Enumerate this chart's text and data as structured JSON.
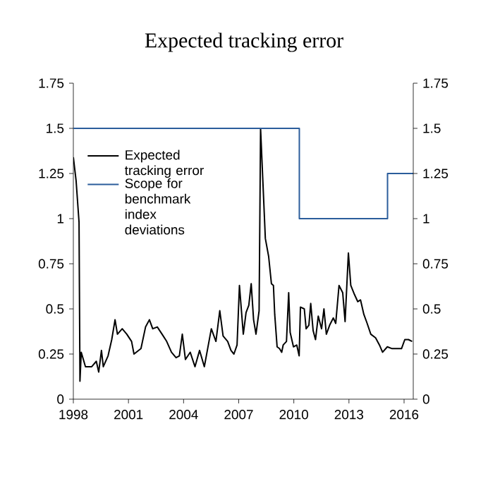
{
  "chart_data": {
    "type": "line",
    "title": "Expected tracking error",
    "xlim": [
      1998,
      2016.5
    ],
    "xticks": [
      1998,
      2001,
      2004,
      2007,
      2010,
      2013,
      2016
    ],
    "ylim": [
      0,
      1.75
    ],
    "yticks": [
      0,
      0.25,
      0.5,
      0.75,
      1,
      1.25,
      1.5,
      1.75
    ],
    "y2lim": [
      0,
      1.75
    ],
    "y2ticks": [
      0,
      0.25,
      0.5,
      0.75,
      1,
      1.25,
      1.5,
      1.75
    ],
    "legend": "top left",
    "series": [
      {
        "name": "Expected tracking error",
        "color": "#000000",
        "x": [
          1998.0,
          1998.15,
          1998.31,
          1998.36,
          1998.43,
          1998.66,
          1999.0,
          1999.25,
          1999.38,
          1999.53,
          1999.63,
          1999.89,
          2000.09,
          2000.27,
          2000.4,
          2000.66,
          2000.91,
          2001.17,
          2001.3,
          2001.68,
          2001.93,
          2002.14,
          2002.32,
          2002.57,
          2002.83,
          2003.08,
          2003.34,
          2003.59,
          2003.77,
          2003.93,
          2004.1,
          2004.36,
          2004.62,
          2004.87,
          2005.13,
          2005.31,
          2005.51,
          2005.76,
          2005.97,
          2006.15,
          2006.4,
          2006.58,
          2006.74,
          2006.91,
          2007.04,
          2007.25,
          2007.4,
          2007.55,
          2007.68,
          2007.81,
          2007.94,
          2008.11,
          2008.19,
          2008.45,
          2008.63,
          2008.78,
          2008.89,
          2008.96,
          2009.09,
          2009.22,
          2009.34,
          2009.42,
          2009.6,
          2009.72,
          2009.8,
          2009.98,
          2010.16,
          2010.29,
          2010.36,
          2010.57,
          2010.67,
          2010.82,
          2010.92,
          2011.05,
          2011.18,
          2011.33,
          2011.51,
          2011.64,
          2011.77,
          2011.95,
          2012.15,
          2012.28,
          2012.46,
          2012.66,
          2012.79,
          2012.97,
          2013.1,
          2013.3,
          2013.48,
          2013.63,
          2013.81,
          2013.99,
          2014.19,
          2014.45,
          2014.66,
          2014.83,
          2015.09,
          2015.35,
          2015.6,
          2015.86,
          2016.04,
          2016.24,
          2016.44
        ],
        "values": [
          1.34,
          1.21,
          0.98,
          0.1,
          0.26,
          0.18,
          0.18,
          0.21,
          0.15,
          0.27,
          0.18,
          0.24,
          0.33,
          0.44,
          0.36,
          0.39,
          0.36,
          0.32,
          0.25,
          0.28,
          0.4,
          0.44,
          0.39,
          0.4,
          0.36,
          0.32,
          0.26,
          0.23,
          0.24,
          0.36,
          0.22,
          0.26,
          0.18,
          0.27,
          0.18,
          0.28,
          0.39,
          0.32,
          0.49,
          0.35,
          0.32,
          0.27,
          0.25,
          0.3,
          0.63,
          0.36,
          0.48,
          0.52,
          0.64,
          0.44,
          0.36,
          0.49,
          1.5,
          0.89,
          0.79,
          0.64,
          0.63,
          0.47,
          0.29,
          0.28,
          0.26,
          0.3,
          0.32,
          0.59,
          0.37,
          0.29,
          0.3,
          0.24,
          0.51,
          0.5,
          0.39,
          0.41,
          0.53,
          0.38,
          0.33,
          0.46,
          0.39,
          0.5,
          0.36,
          0.41,
          0.45,
          0.42,
          0.63,
          0.59,
          0.43,
          0.81,
          0.63,
          0.58,
          0.54,
          0.55,
          0.47,
          0.42,
          0.36,
          0.34,
          0.3,
          0.26,
          0.29,
          0.28,
          0.28,
          0.28,
          0.33,
          0.33,
          0.32
        ]
      },
      {
        "name": "Scope for benchmark index deviations",
        "type": "step",
        "color": "#2b5d9b",
        "x": [
          1998,
          2010.3,
          2015.1,
          2016.5
        ],
        "values": [
          1.5,
          1,
          1.25,
          1.25
        ]
      }
    ]
  }
}
